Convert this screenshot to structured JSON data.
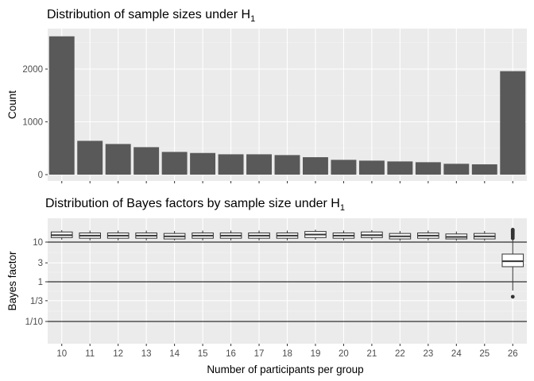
{
  "chart_data": [
    {
      "type": "bar",
      "title": "Distribution of sample sizes under H",
      "title_subscript": "1",
      "xlabel": "",
      "ylabel": "Count",
      "ylim": [
        0,
        2800
      ],
      "yticks": [
        0,
        1000,
        2000
      ],
      "grid": true,
      "categories": [
        "10",
        "11",
        "12",
        "13",
        "14",
        "15",
        "16",
        "17",
        "18",
        "19",
        "20",
        "21",
        "22",
        "23",
        "24",
        "25",
        "26"
      ],
      "values": [
        2620,
        640,
        580,
        520,
        430,
        410,
        385,
        385,
        370,
        330,
        280,
        265,
        250,
        235,
        205,
        195,
        1960
      ],
      "bar_color": "#595959",
      "panel_background": "#ebebeb"
    },
    {
      "type": "boxplot",
      "title": "Distribution of Bayes factors by sample size under H",
      "title_subscript": "1",
      "xlabel": "Number of participants per group",
      "ylabel": "Bayes factor",
      "y_scale": "log10",
      "yticks": [
        "1/10",
        "1/3",
        "1",
        "3",
        "10"
      ],
      "reference_lines": [
        0.1,
        1,
        10
      ],
      "grid": true,
      "categories": [
        "10",
        "11",
        "12",
        "13",
        "14",
        "15",
        "16",
        "17",
        "18",
        "19",
        "20",
        "21",
        "22",
        "23",
        "24",
        "25",
        "26"
      ],
      "boxes": [
        {
          "x": "10",
          "q1": 13.0,
          "median": 15.0,
          "q3": 18.0,
          "whisker_low": 11.5,
          "whisker_high": 20.0
        },
        {
          "x": "11",
          "q1": 12.5,
          "median": 14.5,
          "q3": 17.0,
          "whisker_low": 11.0,
          "whisker_high": 19.5
        },
        {
          "x": "12",
          "q1": 12.5,
          "median": 14.5,
          "q3": 17.0,
          "whisker_low": 11.0,
          "whisker_high": 19.5
        },
        {
          "x": "13",
          "q1": 12.5,
          "median": 14.5,
          "q3": 17.0,
          "whisker_low": 11.0,
          "whisker_high": 19.5
        },
        {
          "x": "14",
          "q1": 12.0,
          "median": 14.0,
          "q3": 16.5,
          "whisker_low": 11.0,
          "whisker_high": 19.0
        },
        {
          "x": "15",
          "q1": 12.5,
          "median": 14.5,
          "q3": 17.0,
          "whisker_low": 11.0,
          "whisker_high": 19.5
        },
        {
          "x": "16",
          "q1": 12.5,
          "median": 14.5,
          "q3": 17.0,
          "whisker_low": 11.0,
          "whisker_high": 19.5
        },
        {
          "x": "17",
          "q1": 12.5,
          "median": 14.5,
          "q3": 17.0,
          "whisker_low": 11.0,
          "whisker_high": 19.5
        },
        {
          "x": "18",
          "q1": 12.5,
          "median": 14.5,
          "q3": 17.0,
          "whisker_low": 11.0,
          "whisker_high": 19.5
        },
        {
          "x": "19",
          "q1": 13.0,
          "median": 15.5,
          "q3": 18.5,
          "whisker_low": 11.5,
          "whisker_high": 20.5
        },
        {
          "x": "20",
          "q1": 12.5,
          "median": 14.5,
          "q3": 17.0,
          "whisker_low": 11.0,
          "whisker_high": 19.5
        },
        {
          "x": "21",
          "q1": 13.0,
          "median": 15.0,
          "q3": 18.0,
          "whisker_low": 11.5,
          "whisker_high": 20.0
        },
        {
          "x": "22",
          "q1": 12.0,
          "median": 14.0,
          "q3": 16.5,
          "whisker_low": 10.8,
          "whisker_high": 19.0
        },
        {
          "x": "23",
          "q1": 12.5,
          "median": 14.5,
          "q3": 17.0,
          "whisker_low": 11.0,
          "whisker_high": 19.5
        },
        {
          "x": "24",
          "q1": 12.0,
          "median": 13.5,
          "q3": 16.0,
          "whisker_low": 10.8,
          "whisker_high": 18.5
        },
        {
          "x": "25",
          "q1": 12.0,
          "median": 14.0,
          "q3": 16.5,
          "whisker_low": 10.8,
          "whisker_high": 19.0
        },
        {
          "x": "26",
          "q1": 2.4,
          "median": 3.3,
          "q3": 5.0,
          "whisker_low": 0.6,
          "whisker_high": 11.5,
          "outliers": [
            0.42,
            12.5,
            13.5,
            14.5,
            15.5,
            16.5,
            17.5,
            18.5,
            19.5,
            20.5
          ]
        }
      ]
    }
  ]
}
